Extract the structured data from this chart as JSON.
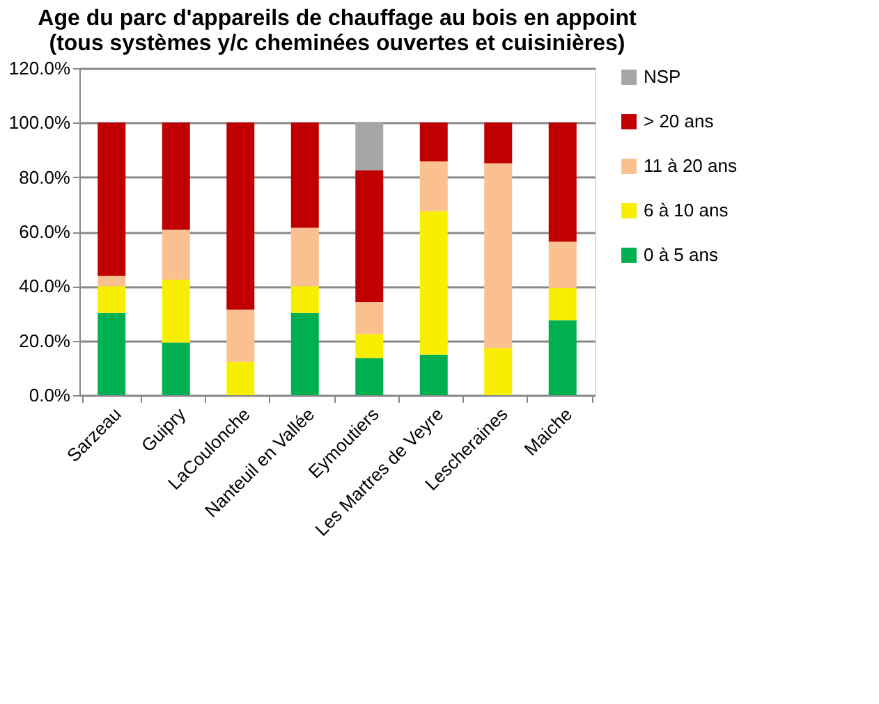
{
  "chart_data": {
    "type": "bar",
    "stacked": true,
    "title": [
      "Age du parc d'appareils de chauffage au bois en appoint",
      "(tous systèmes y/c cheminées ouvertes et cuisinières)"
    ],
    "categories": [
      "Sarzeau",
      "Guipry",
      "LaCoulonche",
      "Nanteuil en Vallée",
      "Eymoutiers",
      "Les Martres de Veyre",
      "Lescheraines",
      "Maiche"
    ],
    "series": [
      {
        "name": "0 à 5 ans",
        "color": "#00b050",
        "values": [
          30.2,
          19.3,
          0,
          30.2,
          13.6,
          14.9,
          0,
          27.5
        ]
      },
      {
        "name": "6 à 10 ans",
        "color": "#f8ef00",
        "values": [
          9.8,
          23.1,
          12.2,
          9.8,
          8.8,
          52.6,
          17.3,
          11.8
        ]
      },
      {
        "name": "11 à 20 ans",
        "color": "#fac090",
        "values": [
          3.7,
          18.3,
          19.2,
          21.4,
          11.8,
          18.3,
          67.8,
          17.0
        ]
      },
      {
        "name": "> 20 ans",
        "color": "#c00000",
        "values": [
          56.3,
          39.3,
          68.6,
          38.6,
          48.3,
          14.2,
          14.9,
          43.7
        ]
      },
      {
        "name": "NSP",
        "color": "#a6a6a6",
        "values": [
          0,
          0,
          0,
          0,
          17.5,
          0,
          0,
          0
        ]
      }
    ],
    "ylim": [
      0,
      120
    ],
    "yticks": [
      {
        "value": 0,
        "label": "0.0%"
      },
      {
        "value": 20,
        "label": "20.0%"
      },
      {
        "value": 40,
        "label": "40.0%"
      },
      {
        "value": 60,
        "label": "60.0%"
      },
      {
        "value": 80,
        "label": "80.0%"
      },
      {
        "value": 100,
        "label": "100.0%"
      },
      {
        "value": 120,
        "label": "120.0%"
      }
    ],
    "grid": "y",
    "legend": "right"
  }
}
